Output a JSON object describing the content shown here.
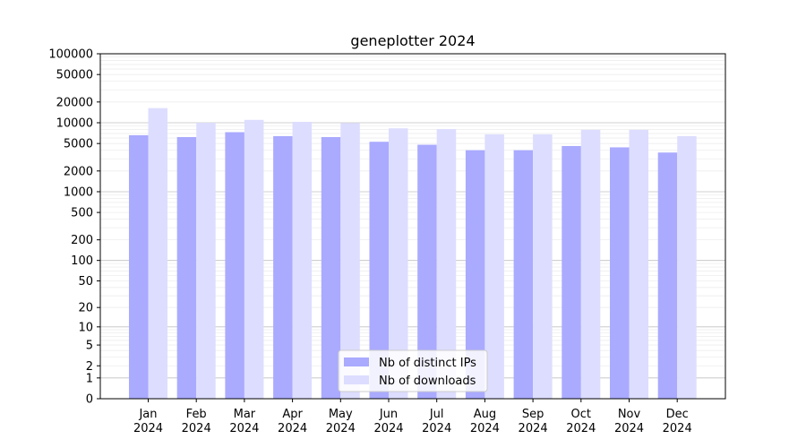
{
  "chart_data": {
    "type": "bar",
    "title": "geneplotter 2024",
    "xlabel": "",
    "ylabel": "",
    "yscale": "log1p",
    "ylim": [
      0,
      100000
    ],
    "yticks": [
      0,
      1,
      2,
      5,
      10,
      20,
      50,
      100,
      200,
      500,
      1000,
      2000,
      5000,
      10000,
      20000,
      50000,
      100000
    ],
    "grid": true,
    "legend_position": "bottom-center",
    "categories": [
      [
        "Jan",
        "2024"
      ],
      [
        "Feb",
        "2024"
      ],
      [
        "Mar",
        "2024"
      ],
      [
        "Apr",
        "2024"
      ],
      [
        "May",
        "2024"
      ],
      [
        "Jun",
        "2024"
      ],
      [
        "Jul",
        "2024"
      ],
      [
        "Aug",
        "2024"
      ],
      [
        "Sep",
        "2024"
      ],
      [
        "Oct",
        "2024"
      ],
      [
        "Nov",
        "2024"
      ],
      [
        "Dec",
        "2024"
      ]
    ],
    "series": [
      {
        "name": "Nb of distinct IPs",
        "color": "#aaaaff",
        "values": [
          6600,
          6200,
          7300,
          6400,
          6200,
          5300,
          4800,
          4000,
          4000,
          4600,
          4400,
          3700
        ]
      },
      {
        "name": "Nb of downloads",
        "color": "#ddddff",
        "values": [
          16300,
          10000,
          11000,
          10300,
          9900,
          8300,
          8100,
          6800,
          6800,
          7900,
          7900,
          6400
        ]
      }
    ]
  }
}
